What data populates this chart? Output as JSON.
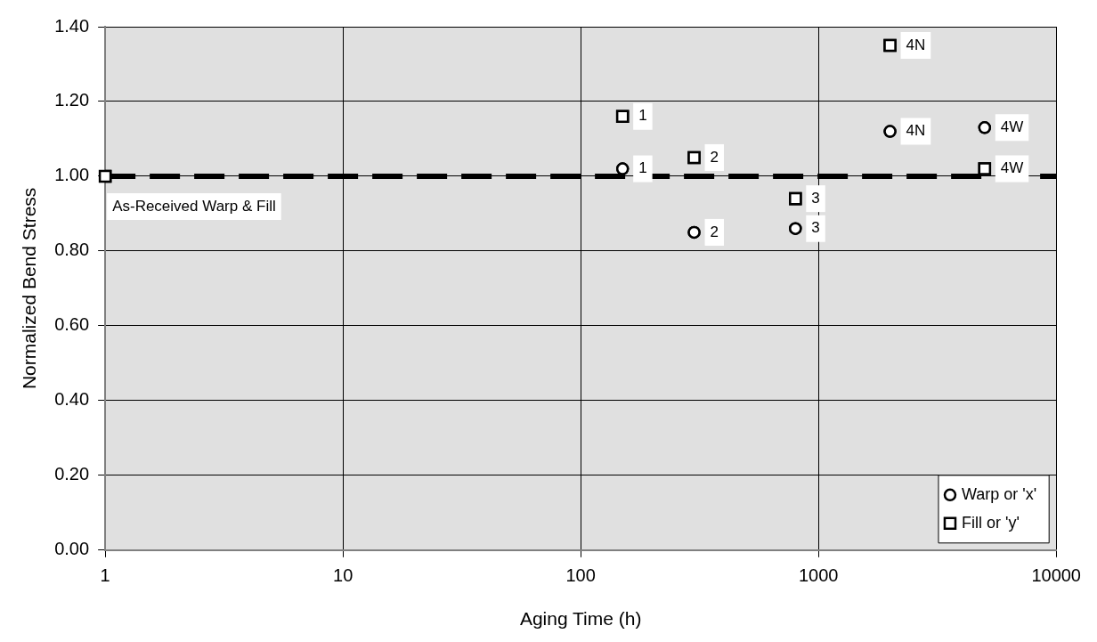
{
  "chart_data": {
    "type": "scatter",
    "xlabel": "Aging Time (h)",
    "ylabel": "Normalized Bend Stress",
    "log": "x",
    "xlim": [
      1,
      10000
    ],
    "xticks": [
      1,
      10,
      100,
      1000,
      10000
    ],
    "ylim": [
      0,
      1.4
    ],
    "yticks": [
      {
        "value": 0,
        "label": "0.00"
      },
      {
        "value": 0.2,
        "label": "0.20"
      },
      {
        "value": 0.4,
        "label": "0.40"
      },
      {
        "value": 0.6,
        "label": "0.60"
      },
      {
        "value": 0.8,
        "label": "0.80"
      },
      {
        "value": 1,
        "label": "1.00"
      },
      {
        "value": 1.2,
        "label": "1.20"
      },
      {
        "value": 1.4,
        "label": "1.40"
      }
    ],
    "grid": true,
    "legend": "bottom right",
    "series": [
      {
        "name": "Warp or 'x'",
        "color": "#000000",
        "marker": "circle",
        "x": [
          150,
          300,
          800,
          2000,
          5000
        ],
        "values": [
          1.02,
          0.85,
          0.86,
          1.12,
          1.13
        ]
      },
      {
        "name": "Fill or 'y'",
        "color": "#000000",
        "marker": "square",
        "x": [
          1,
          150,
          300,
          800,
          2000,
          5000
        ],
        "values": [
          1.0,
          1.16,
          1.05,
          0.94,
          1.35,
          1.02
        ]
      }
    ],
    "annotations": [
      {
        "text": "1",
        "x": 150,
        "y": 1.02
      },
      {
        "text": "2",
        "x": 300,
        "y": 0.85
      },
      {
        "text": "3",
        "x": 800,
        "y": 0.86
      },
      {
        "text": "4N",
        "x": 2000,
        "y": 1.12
      },
      {
        "text": "4W",
        "x": 5000,
        "y": 1.13
      },
      {
        "text": "As-Received Warp & Fill",
        "x": 1,
        "y": 1.0
      },
      {
        "text": "1",
        "x": 150,
        "y": 1.16
      },
      {
        "text": "2",
        "x": 300,
        "y": 1.05
      },
      {
        "text": "3",
        "x": 800,
        "y": 0.94
      },
      {
        "text": "4N",
        "x": 2000,
        "y": 1.35
      },
      {
        "text": "4W",
        "x": 5000,
        "y": 1.02
      }
    ],
    "ref_lines": [
      {
        "axis": "y",
        "value": 1.0,
        "color": "#000000",
        "line_style": "dashed"
      }
    ]
  }
}
